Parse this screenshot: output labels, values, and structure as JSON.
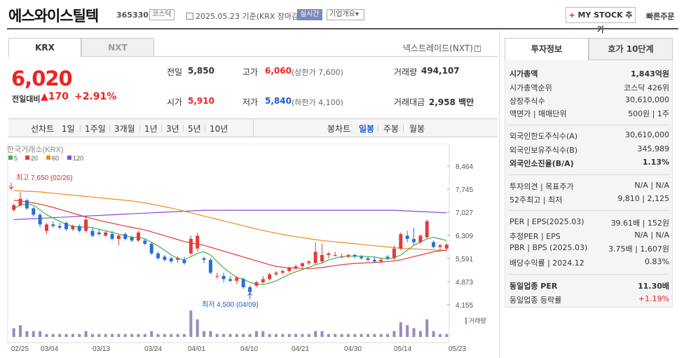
{
  "header": {
    "name": "에스와이스틸텍",
    "code": "365330",
    "market_tag": "코스닥",
    "date_text": "2025.05.23 기준(KRX 장마감)",
    "realtime": "실시간",
    "overview": "기업개요",
    "mystock": "MY STOCK 추가",
    "quick_order": "빠른주문"
  },
  "tabs": {
    "krx": "KRX",
    "nxt": "NXT",
    "nxt_link": "넥스트레이드(NXT)"
  },
  "quote": {
    "price": "6,020",
    "change_label": "전일대비",
    "change": "▲170",
    "change_pct": "+2.91%",
    "prev_label": "전일",
    "prev": "5,850",
    "high_label": "고가",
    "high": "6,060",
    "upper_limit": "(상한가 7,600)",
    "volume_label": "거래량",
    "volume": "494,107",
    "open_label": "시가",
    "open": "5,910",
    "low_label": "저가",
    "low": "5,840",
    "lower_limit": "(하한가 4,100)",
    "amount_label": "거래대금",
    "amount": "2,958 백만"
  },
  "period": {
    "line_chart": "선차트",
    "items": [
      "1일",
      "1주일",
      "3개월",
      "1년",
      "3년",
      "5년",
      "10년"
    ],
    "candle_chart": "봉차트",
    "candles": [
      "일봉",
      "주봉",
      "월봉"
    ]
  },
  "chart_data": {
    "type": "candlestick",
    "source": "한국거래소(KRX)",
    "ma_legend": [
      {
        "name": "5",
        "color": "#3cb24a"
      },
      {
        "name": "20",
        "color": "#e23b3b"
      },
      {
        "name": "60",
        "color": "#f08a1c"
      },
      {
        "name": "120",
        "color": "#8a4ad8"
      }
    ],
    "y_ticks": [
      "8,464",
      "7,745",
      "7,027",
      "6,309",
      "5,591",
      "4,873",
      "4,155"
    ],
    "ylim": [
      4155,
      8464
    ],
    "x_ticks": [
      "02/25",
      "03/04",
      "03/13",
      "03/24",
      "04/01",
      "04/10",
      "04/21",
      "04/30",
      "05/14",
      "05/23"
    ],
    "high_label": "최고 7,650 (02/26)",
    "low_label": "최저 4,500 (04/09)",
    "volume_label": "거래량",
    "candles": [
      [
        7100,
        7300,
        7050,
        7250,
        3
      ],
      [
        7250,
        7650,
        7200,
        7450,
        4
      ],
      [
        7400,
        7450,
        7100,
        7150,
        2
      ],
      [
        7150,
        7200,
        6900,
        6950,
        2
      ],
      [
        6950,
        7000,
        6550,
        6650,
        2
      ],
      [
        6450,
        6700,
        6350,
        6650,
        1
      ],
      [
        6650,
        6750,
        6550,
        6600,
        1
      ],
      [
        6600,
        6700,
        6500,
        6550,
        1
      ],
      [
        6700,
        6750,
        6450,
        6500,
        1
      ],
      [
        6500,
        6650,
        6450,
        6600,
        1
      ],
      [
        6600,
        6650,
        6400,
        6450,
        1
      ],
      [
        6450,
        6900,
        6400,
        6800,
        2
      ],
      [
        6450,
        6550,
        6250,
        6300,
        1
      ],
      [
        6400,
        6500,
        6300,
        6350,
        1
      ],
      [
        6300,
        6450,
        6250,
        6400,
        1
      ],
      [
        6350,
        6450,
        6150,
        6200,
        1
      ],
      [
        6200,
        6350,
        6000,
        6300,
        1
      ],
      [
        6350,
        6400,
        6150,
        6200,
        1
      ],
      [
        6250,
        6300,
        6100,
        6150,
        1
      ],
      [
        6150,
        6450,
        6100,
        6400,
        1
      ],
      [
        6150,
        6200,
        6000,
        6050,
        1
      ],
      [
        6050,
        6100,
        5700,
        5750,
        2
      ],
      [
        5750,
        5800,
        5550,
        5600,
        1
      ],
      [
        5650,
        5700,
        5500,
        5550,
        1
      ],
      [
        5600,
        5650,
        5450,
        5500,
        1
      ],
      [
        5550,
        5650,
        5450,
        5600,
        1
      ],
      [
        5550,
        5650,
        5400,
        5450,
        1
      ],
      [
        5750,
        6300,
        5700,
        6200,
        9
      ],
      [
        5900,
        6400,
        5800,
        6300,
        6
      ],
      [
        5600,
        5650,
        5450,
        5550,
        2
      ],
      [
        5550,
        5600,
        5100,
        5150,
        2
      ],
      [
        5050,
        5150,
        4950,
        5050,
        1
      ],
      [
        5050,
        5150,
        4850,
        4950,
        1
      ],
      [
        4950,
        5050,
        4850,
        4900,
        1
      ],
      [
        4900,
        5050,
        4800,
        5000,
        1
      ],
      [
        4950,
        5000,
        4650,
        4700,
        1
      ],
      [
        4700,
        4750,
        4500,
        4550,
        1
      ],
      [
        4750,
        4900,
        4700,
        4850,
        2
      ],
      [
        4850,
        5050,
        4800,
        4950,
        2
      ],
      [
        4950,
        5150,
        4900,
        5100,
        1
      ],
      [
        5100,
        5200,
        5050,
        5150,
        1
      ],
      [
        5150,
        5250,
        5100,
        5200,
        1
      ],
      [
        5200,
        5350,
        5150,
        5300,
        1
      ],
      [
        5300,
        5400,
        5250,
        5350,
        1
      ],
      [
        5350,
        5450,
        5300,
        5450,
        1
      ],
      [
        5450,
        5550,
        5400,
        5500,
        1
      ],
      [
        5450,
        6100,
        5400,
        5800,
        2
      ],
      [
        5500,
        6050,
        5450,
        5700,
        2
      ],
      [
        5700,
        5800,
        5600,
        5750,
        1
      ],
      [
        5700,
        5800,
        5650,
        5700,
        1
      ],
      [
        5650,
        5750,
        5600,
        5650,
        1
      ],
      [
        5650,
        5750,
        5600,
        5700,
        1
      ],
      [
        5700,
        5750,
        5600,
        5650,
        1
      ],
      [
        5650,
        5700,
        5550,
        5600,
        1
      ],
      [
        5600,
        5650,
        5500,
        5550,
        1
      ],
      [
        5550,
        5650,
        5450,
        5500,
        1
      ],
      [
        5500,
        5600,
        5450,
        5550,
        1
      ],
      [
        5650,
        5700,
        5550,
        5600,
        1
      ],
      [
        5600,
        6000,
        5550,
        5900,
        2
      ],
      [
        5900,
        6400,
        5850,
        6350,
        5
      ],
      [
        6300,
        6450,
        6100,
        6200,
        4
      ],
      [
        6200,
        6550,
        6000,
        6100,
        3
      ],
      [
        6100,
        6350,
        6050,
        6300,
        2
      ],
      [
        6250,
        6800,
        6200,
        6750,
        6
      ],
      [
        6100,
        6150,
        5900,
        5950,
        2
      ],
      [
        5950,
        6050,
        5850,
        6000,
        1
      ],
      [
        5900,
        6060,
        5840,
        6020,
        1
      ]
    ],
    "ma5": [
      7150,
      7250,
      7280,
      7250,
      7100,
      6950,
      6850,
      6750,
      6650,
      6600,
      6560,
      6580,
      6550,
      6500,
      6450,
      6400,
      6350,
      6300,
      6250,
      6250,
      6200,
      6100,
      5980,
      5850,
      5700,
      5600,
      5550,
      5650,
      5750,
      5800,
      5700,
      5500,
      5300,
      5150,
      5000,
      4950,
      4850,
      4800,
      4780,
      4830,
      4900,
      5000,
      5100,
      5180,
      5250,
      5320,
      5400,
      5450,
      5550,
      5600,
      5650,
      5660,
      5670,
      5660,
      5650,
      5640,
      5600,
      5580,
      5620,
      5700,
      5850,
      6000,
      6100,
      6200,
      6250,
      6200,
      6150
    ],
    "ma20": [
      7400,
      7380,
      7350,
      7320,
      7280,
      7230,
      7180,
      7120,
      7060,
      7000,
      6940,
      6880,
      6830,
      6780,
      6730,
      6690,
      6640,
      6600,
      6560,
      6520,
      6480,
      6420,
      6360,
      6300,
      6240,
      6180,
      6120,
      6080,
      6040,
      6000,
      5940,
      5880,
      5820,
      5760,
      5700,
      5640,
      5580,
      5520,
      5460,
      5400,
      5350,
      5320,
      5300,
      5290,
      5280,
      5280,
      5290,
      5310,
      5340,
      5370,
      5400,
      5420,
      5440,
      5450,
      5460,
      5470,
      5480,
      5500,
      5520,
      5550,
      5600,
      5650,
      5700,
      5750,
      5800,
      5830,
      5850
    ],
    "ma60": [
      7700,
      7690,
      7680,
      7670,
      7660,
      7640,
      7620,
      7600,
      7580,
      7560,
      7540,
      7520,
      7500,
      7480,
      7460,
      7440,
      7420,
      7400,
      7380,
      7350,
      7320,
      7280,
      7240,
      7200,
      7160,
      7110,
      7060,
      7010,
      6960,
      6910,
      6860,
      6810,
      6760,
      6710,
      6660,
      6610,
      6560,
      6510,
      6460,
      6420,
      6380,
      6340,
      6300,
      6270,
      6240,
      6210,
      6180,
      6150,
      6130,
      6110,
      6090,
      6070,
      6050,
      6030,
      6010,
      5990,
      5970,
      5950,
      5930,
      5910,
      5900,
      5890,
      5880,
      5870,
      5860,
      5850,
      5840
    ],
    "ma120": [
      6800,
      6810,
      6820,
      6830,
      6840,
      6850,
      6860,
      6870,
      6880,
      6890,
      6900,
      6910,
      6920,
      6930,
      6940,
      6950,
      6960,
      6970,
      6980,
      6990,
      7000,
      7010,
      7020,
      7030,
      7040,
      7050,
      7060,
      7070,
      7080,
      7090,
      7090,
      7090,
      7090,
      7090,
      7090,
      7090,
      7090,
      7090,
      7090,
      7090,
      7090,
      7090,
      7090,
      7090,
      7090,
      7090,
      7090,
      7090,
      7090,
      7090,
      7090,
      7090,
      7090,
      7090,
      7090,
      7090,
      7090,
      7090,
      7090,
      7080,
      7070,
      7060,
      7050,
      7040,
      7030,
      7020,
      7010
    ]
  },
  "invest": {
    "tab1": "투자정보",
    "tab2": "호가 10단계",
    "rows": [
      {
        "l": "시가총액",
        "v": "1,843억원",
        "bold": true
      },
      {
        "l": "시가총액순위",
        "v": "코스닥 426위"
      },
      {
        "l": "상장주식수",
        "v": "30,610,000"
      },
      {
        "l": "액면가 | 매매단위",
        "v": "500원 | 1주"
      },
      {
        "l": "외국인한도주식수(A)",
        "v": "30,610,000"
      },
      {
        "l": "외국인보유주식수(B)",
        "v": "345,989"
      },
      {
        "l": "외국인소진율(B/A)",
        "v": "1.13%",
        "bold": true
      },
      {
        "l": "투자의견 | 목표주가",
        "v": "N/A | N/A"
      },
      {
        "l": "52주최고 | 최저",
        "v": "9,810 | 2,125"
      },
      {
        "l": "PER | EPS(2025.03)",
        "v": "39.61배 | 152원"
      },
      {
        "l": "추정PER | EPS",
        "v": "N/A | N/A"
      },
      {
        "l": "PBR | BPS (2025.03)",
        "v": "3.75배 | 1,607원"
      },
      {
        "l": "배당수익률 | 2024.12",
        "v": "0.83%"
      },
      {
        "l": "동일업종 PER",
        "v": "11.30배",
        "bold": true
      },
      {
        "l": "동일업종 등락률",
        "v": "+1.19%",
        "red": true
      }
    ]
  }
}
